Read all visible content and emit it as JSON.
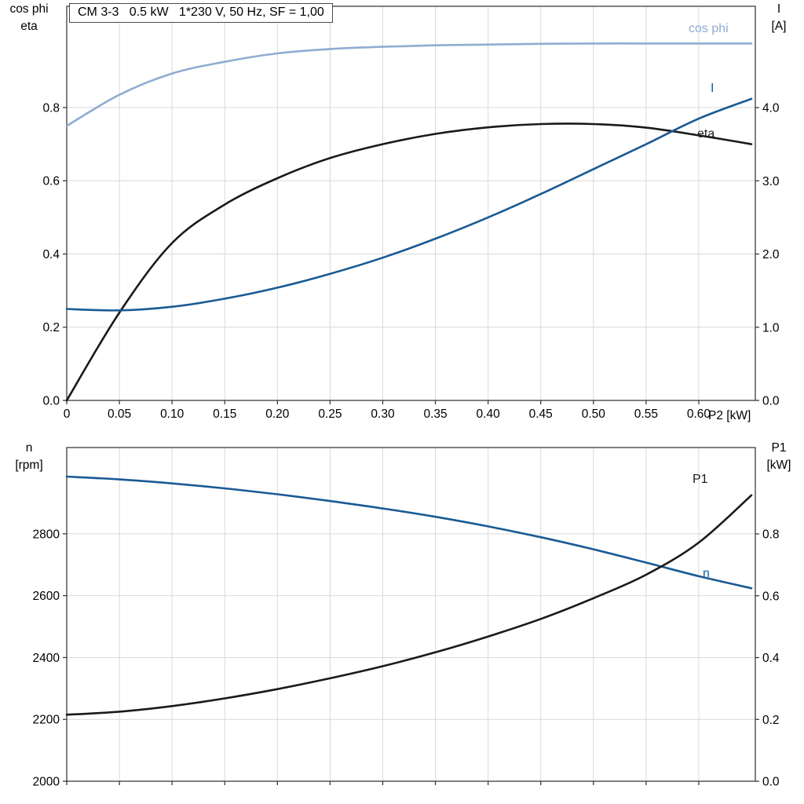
{
  "colors": {
    "dark_blue": "#1a5a94",
    "light_blue": "#8fadd1",
    "black": "#1a1a1a",
    "grid": "#d9d9d9",
    "axis": "#3c3c3c"
  },
  "chart_data": [
    {
      "type": "line",
      "title": "CM 3-3   0.5 kW   1*230 V, 50 Hz, SF = 1,00",
      "x": [
        0,
        0.05,
        0.1,
        0.15,
        0.2,
        0.25,
        0.3,
        0.35,
        0.4,
        0.45,
        0.5,
        0.55,
        0.6,
        0.65
      ],
      "x_axis": {
        "label": "P2 [kW]",
        "range": [
          0,
          0.6537
        ],
        "ticks": [
          0,
          0.05,
          0.1,
          0.15,
          0.2,
          0.25,
          0.3,
          0.35,
          0.4,
          0.45,
          0.5,
          0.55,
          0.6
        ],
        "tick_labels": [
          "0",
          "0.05",
          "0.10",
          "0.15",
          "0.20",
          "0.25",
          "0.30",
          "0.35",
          "0.40",
          "0.45",
          "0.50",
          "0.55",
          "0.60"
        ],
        "grid": true
      },
      "left_axis": {
        "title_lines": [
          "cos phi",
          "eta"
        ],
        "range": [
          0,
          1.0766
        ],
        "ticks": [
          0,
          0.2,
          0.4,
          0.6,
          0.8
        ],
        "tick_labels": [
          "0.0",
          "0.2",
          "0.4",
          "0.6",
          "0.8"
        ]
      },
      "right_axis": {
        "title_lines": [
          "I",
          "[A]"
        ],
        "range": [
          0,
          5.385
        ],
        "ticks": [
          0,
          1,
          2,
          3,
          4
        ],
        "tick_labels": [
          "0.0",
          "1.0",
          "2.0",
          "3.0",
          "4.0"
        ]
      },
      "series": [
        {
          "name": "cos phi",
          "axis": "left",
          "color": "light_blue",
          "values": [
            0.75,
            0.835,
            0.893,
            0.925,
            0.948,
            0.96,
            0.966,
            0.97,
            0.972,
            0.974,
            0.975,
            0.975,
            0.975,
            0.975
          ]
        },
        {
          "name": "eta",
          "axis": "left",
          "color": "black",
          "values": [
            0.0,
            0.24,
            0.43,
            0.535,
            0.607,
            0.662,
            0.7,
            0.728,
            0.746,
            0.755,
            0.755,
            0.745,
            0.724,
            0.7
          ]
        },
        {
          "name": "I",
          "axis": "right",
          "color": "dark_blue",
          "values": [
            1.25,
            1.23,
            1.28,
            1.39,
            1.54,
            1.73,
            1.95,
            2.21,
            2.5,
            2.82,
            3.16,
            3.5,
            3.85,
            4.12
          ]
        }
      ]
    },
    {
      "type": "line",
      "x": [
        0,
        0.05,
        0.1,
        0.15,
        0.2,
        0.25,
        0.3,
        0.35,
        0.4,
        0.45,
        0.5,
        0.55,
        0.6,
        0.65
      ],
      "x_axis": {
        "label": "",
        "range": [
          0,
          0.6537
        ],
        "ticks": [
          0,
          0.05,
          0.1,
          0.15,
          0.2,
          0.25,
          0.3,
          0.35,
          0.4,
          0.45,
          0.5,
          0.55,
          0.6
        ],
        "tick_labels": [],
        "grid": true
      },
      "left_axis": {
        "title_lines": [
          "n",
          "[rpm]"
        ],
        "range": [
          2000,
          3079
        ],
        "ticks": [
          2000,
          2200,
          2400,
          2600,
          2800
        ],
        "tick_labels": [
          "2000",
          "2200",
          "2400",
          "2600",
          "2800"
        ]
      },
      "right_axis": {
        "title_lines": [
          "P1",
          "[kW]"
        ],
        "range": [
          0,
          1.0794
        ],
        "ticks": [
          0,
          0.2,
          0.4,
          0.6,
          0.8
        ],
        "tick_labels": [
          "0.0",
          "0.2",
          "0.4",
          "0.6",
          "0.8"
        ]
      },
      "series": [
        {
          "name": "n",
          "axis": "left",
          "color": "dark_blue",
          "values": [
            2985,
            2976,
            2963,
            2947,
            2928,
            2906,
            2882,
            2855,
            2824,
            2789,
            2750,
            2707,
            2663,
            2624
          ]
        },
        {
          "name": "P1",
          "axis": "right",
          "color": "black",
          "values": [
            0.215,
            0.225,
            0.243,
            0.268,
            0.298,
            0.333,
            0.372,
            0.417,
            0.468,
            0.525,
            0.592,
            0.668,
            0.772,
            0.925
          ]
        }
      ]
    }
  ]
}
